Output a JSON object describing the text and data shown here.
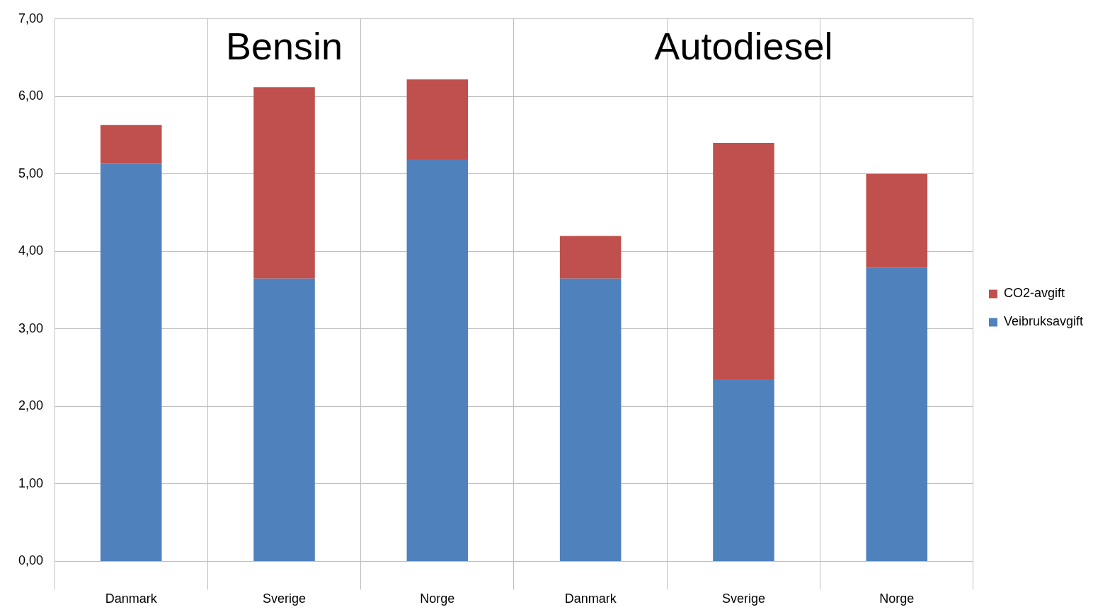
{
  "chart_data": {
    "type": "bar",
    "stacked": true,
    "categories": [
      "Danmark",
      "Sverige",
      "Norge",
      "Danmark",
      "Sverige",
      "Norge"
    ],
    "series": [
      {
        "name": "Veibruksavgift",
        "color": "#4f81bd",
        "values": [
          5.13,
          3.65,
          5.19,
          3.65,
          2.35,
          3.79
        ]
      },
      {
        "name": "CO2-avgift",
        "color": "#c0504d",
        "values": [
          0.5,
          2.47,
          1.03,
          0.55,
          3.05,
          1.21
        ]
      }
    ],
    "ylim": [
      0,
      7
    ],
    "yticks": [
      {
        "value": 0,
        "label": "0,00"
      },
      {
        "value": 1,
        "label": "1,00"
      },
      {
        "value": 2,
        "label": "2,00"
      },
      {
        "value": 3,
        "label": "3,00"
      },
      {
        "value": 4,
        "label": "4,00"
      },
      {
        "value": 5,
        "label": "5,00"
      },
      {
        "value": 6,
        "label": "6,00"
      },
      {
        "value": 7,
        "label": "7,00"
      }
    ],
    "grid": "y",
    "legend": "right",
    "annotations": [
      "Bensin",
      "Autodiesel"
    ]
  }
}
